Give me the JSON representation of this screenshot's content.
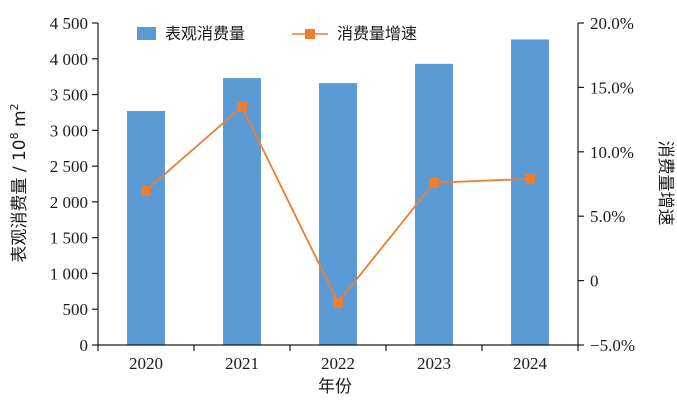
{
  "chart_data": {
    "type": "bar+line",
    "categories": [
      "2020",
      "2021",
      "2022",
      "2023",
      "2024"
    ],
    "series": [
      {
        "name": "表观消费量",
        "kind": "bar",
        "axis": "left",
        "color": "#5b9bd5",
        "values": [
          3270,
          3730,
          3660,
          3930,
          4270
        ]
      },
      {
        "name": "消费量增速",
        "kind": "line",
        "axis": "right",
        "color": "#ed7d31",
        "marker": "square",
        "values": [
          7.0,
          13.5,
          -1.7,
          7.6,
          7.9
        ]
      }
    ],
    "xlabel": "年份",
    "ylabel_main": "表观消费量 / 10",
    "ylabel_sup": "8",
    "ylabel_unit": " m",
    "ylabel_unit_sup": "2",
    "y2label": "消费量增速",
    "ylim": [
      0,
      4500
    ],
    "y2lim": [
      -5,
      20
    ],
    "yticks": [
      "0",
      "500",
      "1 000",
      "1 500",
      "2 000",
      "2 500",
      "3 000",
      "3 500",
      "4 000",
      "4 500"
    ],
    "y2ticks": [
      "−5.0%",
      "0",
      "5.0%",
      "10.0%",
      "15.0%",
      "20.0%"
    ],
    "legend_position": "top",
    "grid": false
  }
}
